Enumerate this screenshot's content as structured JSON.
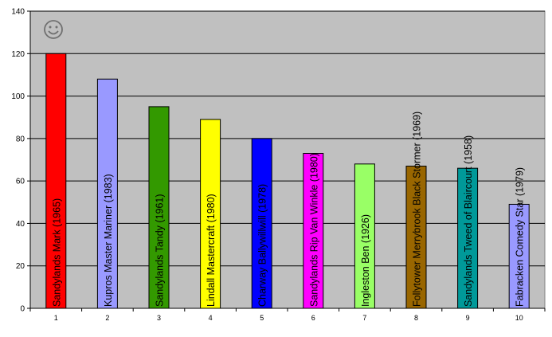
{
  "chart_data": {
    "type": "bar",
    "title": "",
    "xlabel": "",
    "ylabel": "",
    "ylim": [
      0,
      140
    ],
    "yticks": [
      0,
      20,
      40,
      60,
      80,
      100,
      120,
      140
    ],
    "grid": true,
    "legend": "none",
    "plot_background": "#c0c0c0",
    "categories": [
      "1",
      "2",
      "3",
      "4",
      "5",
      "6",
      "7",
      "8",
      "9",
      "10"
    ],
    "values": [
      120,
      108,
      95,
      89,
      80,
      73,
      68,
      67,
      66,
      49
    ],
    "bar_labels": [
      "Sandylands Mark (1965)",
      "Kupros Master Mariner (1983)",
      "Sandylands Tandy (1961)",
      "Lindall Mastercraft (1980)",
      "Charway Ballywillwill (1978)",
      "Sandylands Rip Van Winkle (1980)",
      "Ingleston Ben (1926)",
      "Follytower Merrybrook Black Stormer (1969)",
      "Sandylands Tweed of Blaircourt (1958)",
      "Fabracken Comedy Star (1979)"
    ],
    "colors": [
      "#ff0000",
      "#9999ff",
      "#339900",
      "#ffff00",
      "#0000ff",
      "#ff00ff",
      "#99ff66",
      "#996600",
      "#009999",
      "#9999ff"
    ],
    "icon": "smiley-face-icon"
  }
}
